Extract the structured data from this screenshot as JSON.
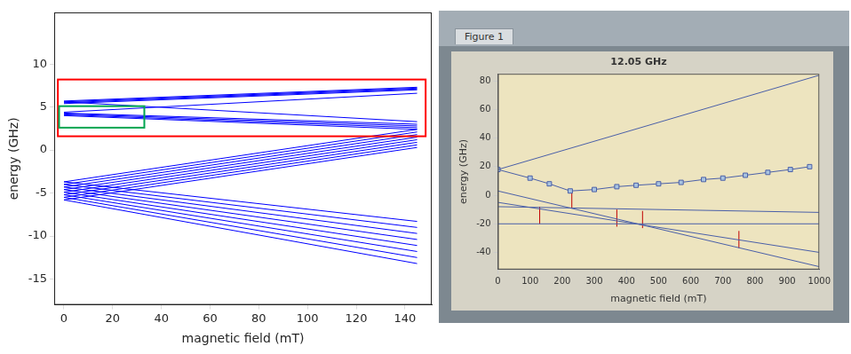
{
  "chart_data": [
    {
      "type": "line",
      "x_label": "magnetic field (mT)",
      "y_label": "energy (GHz)",
      "x": [
        0,
        145
      ],
      "xlim": [
        -4,
        151
      ],
      "xticks": [
        0,
        20,
        40,
        60,
        80,
        100,
        120,
        140
      ],
      "ylim": [
        -18,
        16
      ],
      "yticks": [
        -15,
        -10,
        -5,
        0,
        5,
        10
      ],
      "grid": false,
      "series": [
        {
          "color": "#0000ff",
          "values": [
            5.4,
            7.0
          ]
        },
        {
          "color": "#0000ff",
          "values": [
            5.5,
            7.1
          ]
        },
        {
          "color": "#0000ff",
          "values": [
            5.6,
            7.2
          ]
        },
        {
          "color": "#0000ff",
          "values": [
            5.7,
            7.3
          ]
        },
        {
          "color": "#0000ff",
          "values": [
            4.4,
            6.6
          ]
        },
        {
          "color": "#0000ff",
          "values": [
            5.6,
            3.3
          ]
        },
        {
          "color": "#0000ff",
          "values": [
            4.0,
            2.4
          ]
        },
        {
          "color": "#0000ff",
          "values": [
            4.1,
            2.6
          ]
        },
        {
          "color": "#0000ff",
          "values": [
            4.2,
            2.8
          ]
        },
        {
          "color": "#0000ff",
          "values": [
            4.3,
            3.0
          ]
        },
        {
          "color": "#0000ff",
          "values": [
            -3.7,
            2.4
          ]
        },
        {
          "color": "#0000ff",
          "values": [
            -4.0,
            2.1
          ]
        },
        {
          "color": "#0000ff",
          "values": [
            -4.3,
            1.8
          ]
        },
        {
          "color": "#0000ff",
          "values": [
            -4.6,
            1.5
          ]
        },
        {
          "color": "#0000ff",
          "values": [
            -4.9,
            1.2
          ]
        },
        {
          "color": "#0000ff",
          "values": [
            -5.2,
            0.9
          ]
        },
        {
          "color": "#0000ff",
          "values": [
            -5.5,
            0.6
          ]
        },
        {
          "color": "#0000ff",
          "values": [
            -5.8,
            0.3
          ]
        },
        {
          "color": "#0000ff",
          "values": [
            -3.7,
            -8.3
          ]
        },
        {
          "color": "#0000ff",
          "values": [
            -4.0,
            -9.0
          ]
        },
        {
          "color": "#0000ff",
          "values": [
            -4.3,
            -9.7
          ]
        },
        {
          "color": "#0000ff",
          "values": [
            -4.6,
            -10.4
          ]
        },
        {
          "color": "#0000ff",
          "values": [
            -4.9,
            -11.1
          ]
        },
        {
          "color": "#0000ff",
          "values": [
            -5.2,
            -11.8
          ]
        },
        {
          "color": "#0000ff",
          "values": [
            -5.5,
            -12.5
          ]
        },
        {
          "color": "#0000ff",
          "values": [
            -5.8,
            -13.2
          ]
        }
      ],
      "boxes": [
        {
          "color": "#ff0000",
          "x": [
            -2.5,
            148.5
          ],
          "y": [
            1.6,
            8.2
          ]
        },
        {
          "color": "#00a651",
          "x": [
            -2,
            33
          ],
          "y": [
            2.6,
            5.1
          ]
        }
      ]
    },
    {
      "type": "line",
      "title": "12.05 GHz",
      "x_label": "magnetic field (mT)",
      "y_label": "energy (GHz)",
      "xlim": [
        0,
        1000
      ],
      "xticks": [
        0,
        100,
        200,
        300,
        400,
        500,
        600,
        700,
        800,
        900,
        1000
      ],
      "ylim": [
        -52,
        85
      ],
      "yticks": [
        -40,
        -20,
        0,
        20,
        40,
        60,
        80
      ],
      "grid": false,
      "series": [
        {
          "color": "#4a5fa8",
          "x": [
            0,
            1000
          ],
          "values": [
            18,
            84
          ]
        },
        {
          "color": "#4a5fa8",
          "x": [
            0,
            1000
          ],
          "values": [
            3,
            -50
          ]
        },
        {
          "color": "#4a5fa8",
          "x": [
            0,
            1000
          ],
          "values": [
            -8,
            -12
          ]
        },
        {
          "color": "#4a5fa8",
          "x": [
            0,
            1000
          ],
          "values": [
            -5,
            -40
          ]
        },
        {
          "color": "#4a5fa8",
          "x": [
            0,
            1000
          ],
          "values": [
            -20,
            -20
          ]
        },
        {
          "color": "#4a5fa8",
          "marker": "square",
          "x": [
            0,
            100,
            160,
            225,
            300,
            370,
            430,
            500,
            570,
            640,
            700,
            770,
            840,
            910,
            970
          ],
          "values": [
            18,
            12,
            8,
            3,
            4,
            6,
            7,
            8,
            9,
            11,
            12,
            14,
            16,
            18,
            20
          ]
        },
        {
          "color": "#c00000",
          "x": [
            130,
            130
          ],
          "values": [
            -20,
            -8
          ]
        },
        {
          "color": "#c00000",
          "x": [
            230,
            230
          ],
          "values": [
            -9,
            3
          ]
        },
        {
          "color": "#c00000",
          "x": [
            370,
            370
          ],
          "values": [
            -22,
            -10
          ]
        },
        {
          "color": "#c00000",
          "x": [
            450,
            450
          ],
          "values": [
            -23,
            -11
          ]
        },
        {
          "color": "#c00000",
          "x": [
            750,
            750
          ],
          "values": [
            -37,
            -25
          ]
        }
      ]
    }
  ],
  "window": {
    "tab": "Figure 1"
  }
}
